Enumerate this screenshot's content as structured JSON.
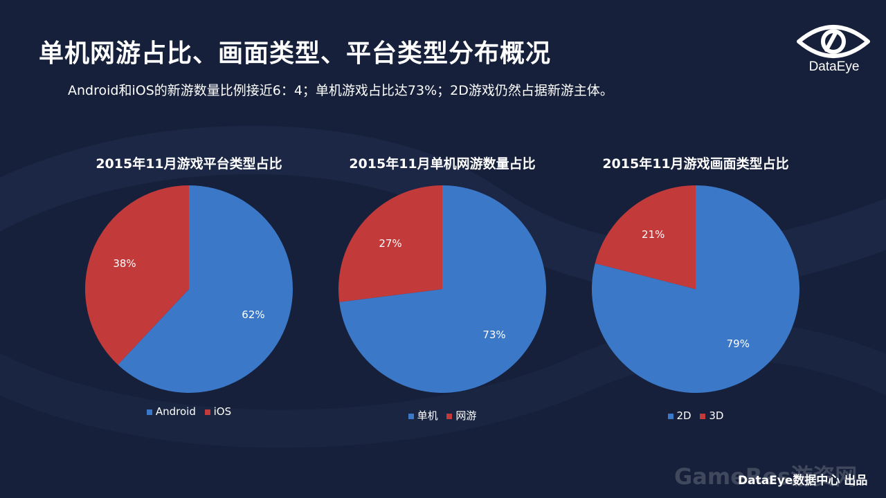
{
  "slide": {
    "title": "单机网游占比、画面类型、平台类型分布概况",
    "subtitle": "Android和iOS的新游数量比例接近6：4；单机游戏占比达73%；2D游戏仍然占据新游主体。"
  },
  "brand": {
    "logo_text": "DataEye",
    "logo_icon": "eye-icon"
  },
  "footer": {
    "credit": "DataEye数据中心 出品",
    "watermark": "GameRes游资网"
  },
  "colors": {
    "background": "#16203a",
    "blue": "#3b78c8",
    "red": "#c23a3a"
  },
  "chart_data": [
    {
      "type": "pie",
      "title": "2015年11月游戏平台类型占比",
      "categories": [
        "Android",
        "iOS"
      ],
      "values": [
        62,
        38
      ],
      "labels": [
        "62%",
        "38%"
      ],
      "colors": [
        "#3b78c8",
        "#c23a3a"
      ],
      "legend": "bottom"
    },
    {
      "type": "pie",
      "title": "2015年11月单机网游数量占比",
      "categories": [
        "单机",
        "网游"
      ],
      "values": [
        73,
        27
      ],
      "labels": [
        "73%",
        "27%"
      ],
      "colors": [
        "#3b78c8",
        "#c23a3a"
      ],
      "legend": "bottom"
    },
    {
      "type": "pie",
      "title": "2015年11月游戏画面类型占比",
      "categories": [
        "2D",
        "3D"
      ],
      "values": [
        79,
        21
      ],
      "labels": [
        "79%",
        "21%"
      ],
      "colors": [
        "#3b78c8",
        "#c23a3a"
      ],
      "legend": "bottom"
    }
  ]
}
